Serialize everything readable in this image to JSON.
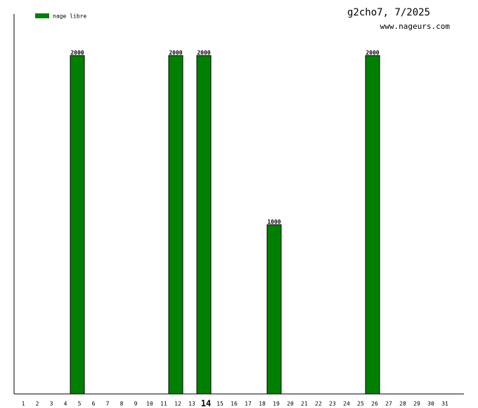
{
  "chart_data": {
    "type": "bar",
    "title": "g2cho7, 7/2025",
    "subtitle": "www.nageurs.com",
    "categories": [
      "1",
      "2",
      "3",
      "4",
      "5",
      "6",
      "7",
      "8",
      "9",
      "10",
      "11",
      "12",
      "13",
      "14",
      "15",
      "16",
      "17",
      "18",
      "19",
      "20",
      "21",
      "22",
      "23",
      "24",
      "25",
      "26",
      "27",
      "28",
      "29",
      "30",
      "31"
    ],
    "series": [
      {
        "name": "nage libre",
        "color": "#008000",
        "values": [
          null,
          null,
          null,
          null,
          2000,
          null,
          null,
          null,
          null,
          null,
          null,
          2000,
          null,
          2000,
          null,
          null,
          null,
          null,
          1000,
          null,
          null,
          null,
          null,
          null,
          null,
          2000,
          null,
          null,
          null,
          null,
          null
        ]
      }
    ],
    "highlight": "14",
    "ylim": [
      0,
      2245
    ]
  }
}
